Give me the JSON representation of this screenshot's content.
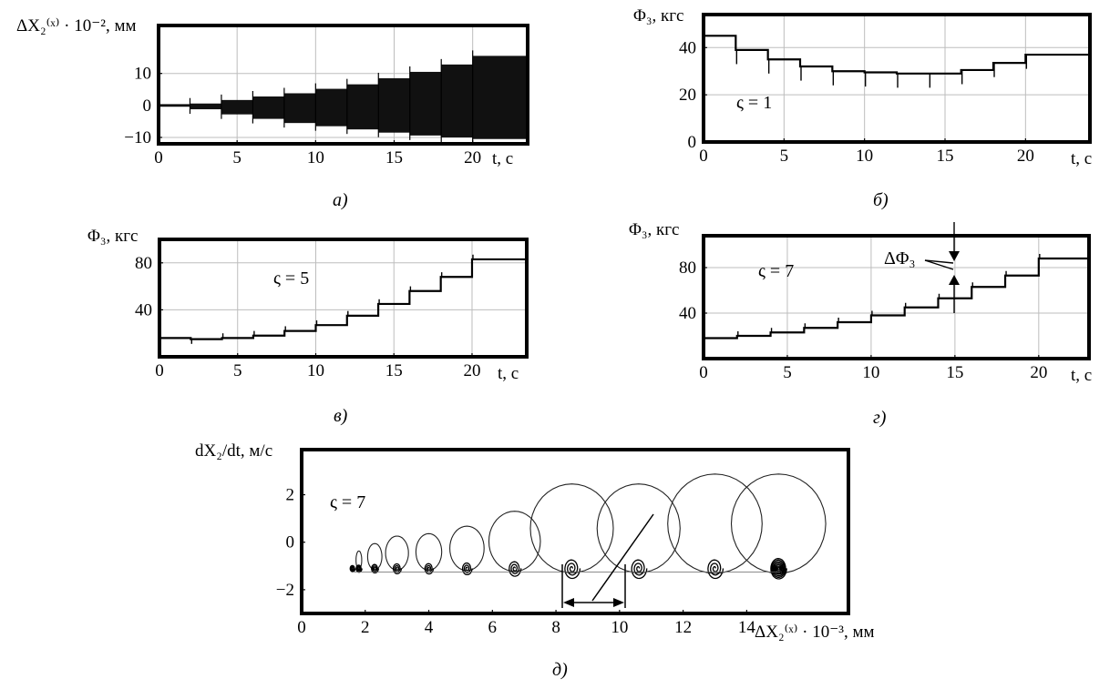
{
  "chart_data": [
    {
      "type": "line",
      "caption": "а)",
      "ylabel": "ΔX₂⁽ˣ⁾ · 10⁻², мм",
      "xlabel": "t, с",
      "xlim": [
        0,
        23.5
      ],
      "ylim": [
        -12,
        25
      ],
      "xticks": [
        0,
        5,
        10,
        15,
        20
      ],
      "yticks": [
        -10,
        0,
        10
      ],
      "grid": true,
      "annotation": "",
      "series": [
        {
          "style": "oscillation-envelope",
          "x": [
            0,
            2,
            4,
            6,
            8,
            10,
            12,
            14,
            16,
            18,
            20,
            23.5
          ],
          "upper": [
            0.4,
            0.6,
            1.7,
            2.8,
            3.8,
            5.2,
            6.6,
            8.5,
            10.5,
            12.8,
            15.5,
            15.5
          ],
          "lower": [
            -0.4,
            -1.2,
            -2.8,
            -4.2,
            -5.5,
            -6.5,
            -7.5,
            -8.5,
            -9.4,
            -10,
            -10.5,
            -10.5
          ]
        }
      ]
    },
    {
      "type": "line",
      "caption": "б)",
      "ylabel": "Φ₃, кгс",
      "xlabel": "t, с",
      "xlim": [
        0,
        24
      ],
      "ylim": [
        0,
        54
      ],
      "xticks": [
        0,
        5,
        10,
        15,
        20
      ],
      "yticks": [
        0,
        20,
        40
      ],
      "grid": true,
      "annotation": "ς = 1",
      "series": [
        {
          "style": "step",
          "x": [
            0,
            2,
            4,
            6,
            8,
            10,
            12,
            14,
            16,
            18,
            20,
            24
          ],
          "y": [
            45,
            39,
            35,
            32,
            30,
            29.5,
            29,
            29,
            30.5,
            33.5,
            37,
            37
          ]
        }
      ]
    },
    {
      "type": "line",
      "caption": "в)",
      "ylabel": "Φ₃, кгс",
      "xlabel": "t, с",
      "xlim": [
        0,
        23.5
      ],
      "ylim": [
        0,
        100
      ],
      "xticks": [
        0,
        5,
        10,
        15,
        20
      ],
      "yticks": [
        40,
        80
      ],
      "grid": true,
      "annotation": "ς = 5",
      "series": [
        {
          "style": "step",
          "x": [
            0,
            2,
            4,
            6,
            8,
            10,
            12,
            14,
            16,
            18,
            20,
            23.5
          ],
          "y": [
            16,
            15,
            16,
            18,
            22,
            27,
            35,
            45,
            56,
            68,
            83,
            83
          ]
        }
      ]
    },
    {
      "type": "line",
      "caption": "г)",
      "ylabel": "Φ₃, кгс",
      "xlabel": "t, с",
      "xlim": [
        0,
        23
      ],
      "ylim": [
        0,
        108
      ],
      "xticks": [
        0,
        5,
        10,
        15,
        20
      ],
      "yticks": [
        40,
        80
      ],
      "grid": true,
      "annotation": "ς = 7",
      "delta_label": "ΔΦ₃",
      "series": [
        {
          "style": "step",
          "x": [
            0,
            2,
            4,
            6,
            8,
            10,
            12,
            14,
            16,
            18,
            20,
            23
          ],
          "y": [
            18,
            20,
            23,
            27,
            32,
            38,
            45,
            53,
            63,
            73,
            88,
            100
          ]
        }
      ]
    },
    {
      "type": "line",
      "caption": "д)",
      "ylabel": "dX₂/dt, м/с",
      "xlabel": "ΔX₂⁽ˣ⁾ · 10⁻³, мм",
      "xlim": [
        0,
        17.2
      ],
      "ylim": [
        -3,
        3.9
      ],
      "xticks": [
        0,
        2,
        4,
        6,
        8,
        10,
        12,
        14
      ],
      "yticks": [
        -2,
        0,
        2
      ],
      "grid": false,
      "annotation": "ς = 7",
      "series": [
        {
          "style": "phase-spiral",
          "centers_x": [
            1.6,
            1.8,
            2.3,
            3.0,
            4.0,
            5.2,
            6.7,
            8.5,
            10.6,
            13.0,
            15.0
          ],
          "centers_y": -1.1,
          "loop_height": [
            0.0,
            0.2,
            0.5,
            0.8,
            0.9,
            1.2,
            1.8,
            2.9,
            2.9,
            3.3,
            3.3
          ]
        }
      ]
    }
  ]
}
